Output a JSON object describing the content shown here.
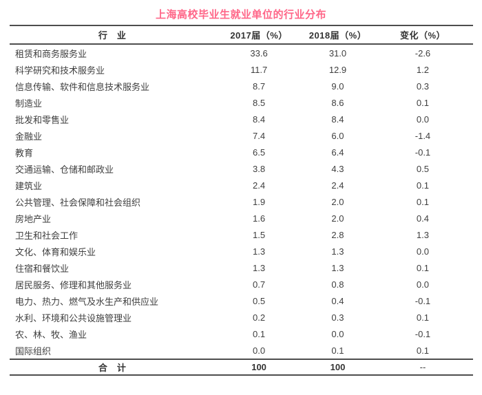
{
  "title": "上海高校毕业生就业单位的行业分布",
  "colors": {
    "title": "#ff6688",
    "header_text": "#333333",
    "body_text": "#3e3e3e",
    "rule_line": "#4d4d4d",
    "background": "#ffffff"
  },
  "table": {
    "headers": [
      "行　业",
      "2017届（%）",
      "2018届（%）",
      "变化（%）"
    ],
    "rows": [
      [
        "租赁和商务服务业",
        "33.6",
        "31.0",
        "-2.6"
      ],
      [
        "科学研究和技术服务业",
        "11.7",
        "12.9",
        "1.2"
      ],
      [
        "信息传输、软件和信息技术服务业",
        "8.7",
        "9.0",
        "0.3"
      ],
      [
        "制造业",
        "8.5",
        "8.6",
        "0.1"
      ],
      [
        "批发和零售业",
        "8.4",
        "8.4",
        "0.0"
      ],
      [
        "金融业",
        "7.4",
        "6.0",
        "-1.4"
      ],
      [
        "教育",
        "6.5",
        "6.4",
        "-0.1"
      ],
      [
        "交通运输、仓储和邮政业",
        "3.8",
        "4.3",
        "0.5"
      ],
      [
        "建筑业",
        "2.4",
        "2.4",
        "0.1"
      ],
      [
        "公共管理、社会保障和社会组织",
        "1.9",
        "2.0",
        "0.1"
      ],
      [
        "房地产业",
        "1.6",
        "2.0",
        "0.4"
      ],
      [
        "卫生和社会工作",
        "1.5",
        "2.8",
        "1.3"
      ],
      [
        "文化、体育和娱乐业",
        "1.3",
        "1.3",
        "0.0"
      ],
      [
        "住宿和餐饮业",
        "1.3",
        "1.3",
        "0.1"
      ],
      [
        "居民服务、修理和其他服务业",
        "0.7",
        "0.8",
        "0.0"
      ],
      [
        "电力、热力、燃气及水生产和供应业",
        "0.5",
        "0.4",
        "-0.1"
      ],
      [
        "水利、环境和公共设施管理业",
        "0.2",
        "0.3",
        "0.1"
      ],
      [
        "农、林、牧、渔业",
        "0.1",
        "0.0",
        "-0.1"
      ],
      [
        "国际组织",
        "0.0",
        "0.1",
        "0.1"
      ]
    ],
    "total": [
      "合　计",
      "100",
      "100",
      "--"
    ]
  },
  "chart_data": {
    "type": "table",
    "title": "上海高校毕业生就业单位的行业分布",
    "columns": [
      "行业",
      "2017届（%）",
      "2018届（%）",
      "变化（%）"
    ],
    "categories": [
      "租赁和商务服务业",
      "科学研究和技术服务业",
      "信息传输、软件和信息技术服务业",
      "制造业",
      "批发和零售业",
      "金融业",
      "教育",
      "交通运输、仓储和邮政业",
      "建筑业",
      "公共管理、社会保障和社会组织",
      "房地产业",
      "卫生和社会工作",
      "文化、体育和娱乐业",
      "住宿和餐饮业",
      "居民服务、修理和其他服务业",
      "电力、热力、燃气及水生产和供应业",
      "水利、环境和公共设施管理业",
      "农、林、牧、渔业",
      "国际组织"
    ],
    "series": [
      {
        "name": "2017届（%）",
        "values": [
          33.6,
          11.7,
          8.7,
          8.5,
          8.4,
          7.4,
          6.5,
          3.8,
          2.4,
          1.9,
          1.6,
          1.5,
          1.3,
          1.3,
          0.7,
          0.5,
          0.2,
          0.1,
          0.0
        ]
      },
      {
        "name": "2018届（%）",
        "values": [
          31.0,
          12.9,
          9.0,
          8.6,
          8.4,
          6.0,
          6.4,
          4.3,
          2.4,
          2.0,
          2.0,
          2.8,
          1.3,
          1.3,
          0.8,
          0.4,
          0.3,
          0.0,
          0.1
        ]
      },
      {
        "name": "变化（%）",
        "values": [
          -2.6,
          1.2,
          0.3,
          0.1,
          0.0,
          -1.4,
          -0.1,
          0.5,
          0.1,
          0.1,
          0.4,
          1.3,
          0.0,
          0.1,
          0.0,
          -0.1,
          0.1,
          -0.1,
          0.1
        ]
      }
    ],
    "total": {
      "label": "合计",
      "2017": 100,
      "2018": 100,
      "change": "--"
    }
  }
}
